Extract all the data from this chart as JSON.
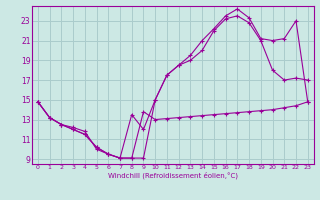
{
  "xlabel": "Windchill (Refroidissement éolien,°C)",
  "bg_color": "#cce8e4",
  "grid_color": "#aacccc",
  "line_color": "#990099",
  "xlim": [
    -0.5,
    23.5
  ],
  "ylim": [
    8.5,
    24.5
  ],
  "xticks": [
    0,
    1,
    2,
    3,
    4,
    5,
    6,
    7,
    8,
    9,
    10,
    11,
    12,
    13,
    14,
    15,
    16,
    17,
    18,
    19,
    20,
    21,
    22,
    23
  ],
  "yticks": [
    9,
    11,
    13,
    15,
    17,
    19,
    21,
    23
  ],
  "series1_x": [
    0,
    1,
    2,
    3,
    4,
    5,
    6,
    7,
    8,
    9,
    10,
    11,
    12,
    13,
    14,
    15,
    16,
    17,
    18,
    19,
    20,
    21,
    22,
    23
  ],
  "series1_y": [
    14.8,
    13.2,
    12.5,
    12.2,
    11.8,
    10.0,
    9.5,
    9.1,
    9.1,
    13.8,
    13.0,
    13.1,
    13.2,
    13.3,
    13.4,
    13.5,
    13.6,
    13.7,
    13.8,
    13.9,
    14.0,
    14.2,
    14.4,
    14.8
  ],
  "series2_x": [
    0,
    1,
    2,
    3,
    4,
    5,
    6,
    7,
    8,
    9,
    10,
    11,
    12,
    13,
    14,
    15,
    16,
    17,
    18,
    19,
    20,
    21,
    22,
    23
  ],
  "series2_y": [
    14.8,
    13.2,
    12.5,
    12.0,
    11.5,
    10.2,
    9.5,
    9.1,
    13.5,
    12.0,
    15.0,
    17.5,
    18.5,
    19.0,
    20.0,
    22.0,
    23.2,
    23.5,
    22.8,
    21.0,
    18.0,
    17.0,
    17.2,
    17.0
  ],
  "series3_x": [
    0,
    1,
    2,
    3,
    4,
    5,
    6,
    7,
    8,
    9,
    10,
    11,
    12,
    13,
    14,
    15,
    16,
    17,
    18,
    19,
    20,
    21,
    22,
    23
  ],
  "series3_y": [
    14.8,
    13.2,
    12.5,
    12.0,
    11.5,
    10.2,
    9.5,
    9.1,
    9.1,
    9.1,
    15.0,
    17.5,
    18.5,
    19.5,
    21.0,
    22.2,
    23.5,
    24.2,
    23.3,
    21.2,
    21.0,
    21.2,
    23.0,
    14.8
  ]
}
